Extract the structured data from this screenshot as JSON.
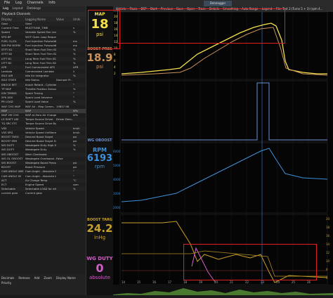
{
  "menubar": {
    "items": [
      "File",
      "Log",
      "Channels",
      "Info"
    ]
  },
  "left_tabs": [
    "Log",
    "Layout",
    "Datalogs"
  ],
  "channel_panel": {
    "title": "Playback Channels",
    "columns": [
      "Display",
      "Logging Name",
      "Value",
      "Units"
    ],
    "rows": [
      [
        "Gear",
        "Gear",
        "",
        ""
      ],
      [
        "Current Time",
        "MULTITUNE_TIME",
        "",
        "s"
      ],
      [
        "Speed",
        "Variable Speed Fan Level",
        "",
        "%"
      ],
      [
        "SPD BP",
        "WOT Open Loop Request",
        "",
        ""
      ],
      [
        "FUEL CL/OL",
        "Fuel Injection Pulsewidth",
        "",
        "ms"
      ],
      [
        "SIM PW NORM",
        "Fuel Injection Pulsewidth",
        "",
        "ms"
      ],
      [
        "STFT B1",
        "Short Term Fuel Trim B1",
        "",
        "%"
      ],
      [
        "STFT B2",
        "Short Term Fuel Trim B2",
        "",
        "%"
      ],
      [
        "LTFT B1",
        "Long Term Fuel Trim B1",
        "",
        "%"
      ],
      [
        "LTFT B2",
        "Long Term Fuel Trim B2",
        "",
        "%"
      ],
      [
        "AFR",
        "Fuel Commanded AFR",
        "",
        "AFR"
      ],
      [
        "Lambda",
        "Commanded Lambda",
        "",
        "λ"
      ],
      [
        "IDLE AIR",
        "Idle Air Integrator",
        "",
        "%"
      ],
      [
        "IDLE STATE",
        "Idle Status",
        "Dashpot Pr..",
        ""
      ],
      [
        "KNOCK RET",
        "Knock Retard - Cylinder Av..",
        "",
        "°"
      ],
      [
        "TP MAP",
        "Throttle Position Sensor",
        "",
        "%"
      ],
      [
        "IGN TIMING",
        "Spark Timing",
        "",
        "°"
      ],
      [
        "SPK ADV",
        "Spark Load Advance",
        "",
        "°"
      ],
      [
        "PR LOAD",
        "Spark Load Value",
        "",
        "%"
      ],
      [
        "MAF CHG MAP",
        "MAF Air - Map Comm..",
        "19857.98",
        ""
      ],
      [
        "MAP",
        "MAP",
        "",
        "kPa"
      ],
      [
        "MAP 2M CHG",
        "MAP at Zero Air Charge",
        "",
        "kPa"
      ],
      [
        "LS SHIFT LIM",
        "Torque Source Driver",
        "Driver Dem..",
        ""
      ],
      [
        "TQ SRC ETC",
        "Torque Source Drive By W..",
        "",
        ""
      ],
      [
        "VSS",
        "Vehicle Speed",
        "",
        "km/h"
      ],
      [
        "VSS SPD",
        "Vehicle Speed Unfiltered",
        "",
        "km/h"
      ],
      [
        "BOOST TARG",
        "Desired Boost Target",
        "",
        "psi"
      ],
      [
        "BOOST ERR",
        "Desired Boost Target Error",
        "",
        "psi"
      ],
      [
        "WG DUTY",
        "Wastegate Duty High Sp..",
        "",
        "%"
      ],
      [
        "WG DUTY",
        "Wastegate Duty",
        "",
        "%"
      ],
      [
        "WG OBOOST",
        "Warn Overboost",
        "",
        ""
      ],
      [
        "WG OL OBOOST",
        "Wastegate Overboost - O..",
        "False",
        ""
      ],
      [
        "WG BOOST",
        "Wastegate Boost Pressure",
        "",
        "psi"
      ],
      [
        "BOOST",
        "Boost Pressure",
        "",
        "psi"
      ],
      [
        "CAM ANGLE ABS",
        "Cam Angle - Absolute Exh..",
        "",
        "°"
      ],
      [
        "CAM ANGLE IN",
        "Cam Angle - Absolute Inta..",
        "",
        "°"
      ],
      [
        "ACT",
        "Air Charge Temp",
        "",
        "°C"
      ],
      [
        "ECT",
        "Engine Speed",
        "",
        "rpm"
      ],
      [
        "Selectable",
        "Selectable LOAD for either..",
        "",
        "%"
      ],
      [
        "current gear",
        "Current gear",
        "",
        ""
      ]
    ]
  },
  "bottom_controls": [
    "Decimals",
    "Remove",
    "Add",
    "Zoom",
    "Display Name",
    "Priority"
  ],
  "gauges": [
    {
      "label": "MAP",
      "value": "18",
      "unit": "psi",
      "color": "#f4e04d"
    },
    {
      "label": "BOOST PRES",
      "value": "18.9",
      "unit": "psi",
      "color": "#e8a030"
    },
    {
      "label": "WG OBOOST",
      "value": "",
      "unit": "",
      "color": "#6a8fd8"
    },
    {
      "label": "RPM",
      "value": "6193",
      "unit": "rpm",
      "color": "#3f8fd8"
    },
    {
      "label": "BOOST TARG",
      "value": "24.2",
      "unit": "inHg",
      "color": "#c8a02a"
    },
    {
      "label": "WG DUTY",
      "value": "0",
      "unit": "absolute",
      "color": "#d060c8"
    }
  ],
  "toolbar": {
    "items": [
      "Vehicle",
      "Trace",
      "DSP",
      "Start",
      "Previous",
      "Save",
      "Open",
      "Trace",
      "Details",
      "Smoothing",
      "Auto Range",
      "Legend",
      "File: Test 2 (Turns 5 + 3) (rpm 4..."
    ]
  },
  "plot_tab": "Datalogger",
  "plots": {
    "map_ticks": [
      "20",
      "18",
      "16",
      "14",
      "12",
      "10",
      "8",
      "6",
      "4",
      "2"
    ],
    "rpm_ticks": [
      "6000",
      "5000",
      "4000",
      "3000",
      "2000"
    ],
    "bottom_ticks": [
      "20",
      "18",
      "16",
      "14",
      "12",
      "10",
      "8",
      "6"
    ],
    "x_ticks": [
      "14",
      "15",
      "16",
      "17",
      "18",
      "19",
      "20",
      "21",
      "22",
      "23",
      "24",
      "25",
      "26"
    ]
  },
  "colors": {
    "map": "#f4e04d",
    "boost": "#c8925a",
    "wg": "#6a8fd8",
    "rpm": "#3f8fd8",
    "target": "#c8a02a",
    "duty": "#d060c8",
    "highlight": "#e02020"
  }
}
